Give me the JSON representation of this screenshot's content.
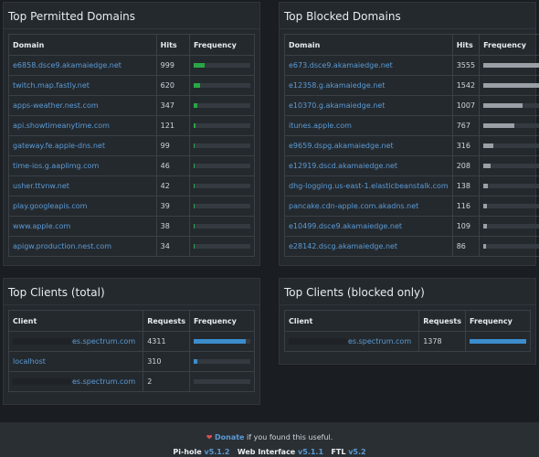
{
  "permitted": {
    "title": "Top Permitted Domains",
    "headers": [
      "Domain",
      "Hits",
      "Frequency"
    ],
    "rows": [
      {
        "domain": "e6858.dsce9.akamaiedge.net",
        "hits": "999",
        "freq": 0.2
      },
      {
        "domain": "twitch.map.fastly.net",
        "hits": "620",
        "freq": 0.12
      },
      {
        "domain": "apps-weather.nest.com",
        "hits": "347",
        "freq": 0.07
      },
      {
        "domain": "api.showtimeanytime.com",
        "hits": "121",
        "freq": 0.025
      },
      {
        "domain": "gateway.fe.apple-dns.net",
        "hits": "99",
        "freq": 0.02
      },
      {
        "domain": "time-ios.g.aaplimg.com",
        "hits": "46",
        "freq": 0.01
      },
      {
        "domain": "usher.ttvnw.net",
        "hits": "42",
        "freq": 0.01
      },
      {
        "domain": "play.googleapis.com",
        "hits": "39",
        "freq": 0.01
      },
      {
        "domain": "www.apple.com",
        "hits": "38",
        "freq": 0.01
      },
      {
        "domain": "apigw.production.nest.com",
        "hits": "34",
        "freq": 0.01
      }
    ]
  },
  "blocked": {
    "title": "Top Blocked Domains",
    "headers": [
      "Domain",
      "Hits",
      "Frequency"
    ],
    "rows": [
      {
        "domain": "e673.dsce9.akamaiedge.net",
        "hits": "3555",
        "freq": 1.0
      },
      {
        "domain": "e12358.g.akamaiedge.net",
        "hits": "1542",
        "freq": 1.0
      },
      {
        "domain": "e10370.g.akamaiedge.net",
        "hits": "1007",
        "freq": 0.7
      },
      {
        "domain": "itunes.apple.com",
        "hits": "767",
        "freq": 0.55
      },
      {
        "domain": "e9659.dspg.akamaiedge.net",
        "hits": "316",
        "freq": 0.18
      },
      {
        "domain": "e12919.dscd.akamaiedge.net",
        "hits": "208",
        "freq": 0.12
      },
      {
        "domain": "dhg-logging.us-east-1.elasticbeanstalk.com",
        "hits": "138",
        "freq": 0.08
      },
      {
        "domain": "pancake.cdn-apple.com.akadns.net",
        "hits": "116",
        "freq": 0.07
      },
      {
        "domain": "e10499.dsce9.akamaiedge.net",
        "hits": "109",
        "freq": 0.06
      },
      {
        "domain": "e28142.dscg.akamaiedge.net",
        "hits": "86",
        "freq": 0.05
      }
    ]
  },
  "clients_total": {
    "title": "Top Clients (total)",
    "headers": [
      "Client",
      "Requests",
      "Frequency"
    ],
    "rows": [
      {
        "client": "es.spectrum.com",
        "redacted": true,
        "requests": "4311",
        "freq": 0.92
      },
      {
        "client": "localhost",
        "redacted": false,
        "requests": "310",
        "freq": 0.07
      },
      {
        "client": "es.spectrum.com",
        "redacted": true,
        "requests": "2",
        "freq": 0.0
      }
    ]
  },
  "clients_blocked": {
    "title": "Top Clients (blocked only)",
    "headers": [
      "Client",
      "Requests",
      "Frequency"
    ],
    "rows": [
      {
        "client": "es.spectrum.com",
        "redacted": true,
        "requests": "1378",
        "freq": 1.0
      }
    ]
  },
  "footer": {
    "donate": "Donate",
    "donate_suffix": " if you found this useful.",
    "pihole_label": "Pi-hole",
    "pihole_ver": "v5.1.2",
    "web_label": "Web Interface",
    "web_ver": "v5.1.1",
    "ftl_label": "FTL",
    "ftl_ver": "v5.2"
  },
  "colors": {
    "permitted_bar": "#28a745",
    "blocked_bar": "#9aa0a6",
    "client_bar": "#3c8dcc"
  }
}
